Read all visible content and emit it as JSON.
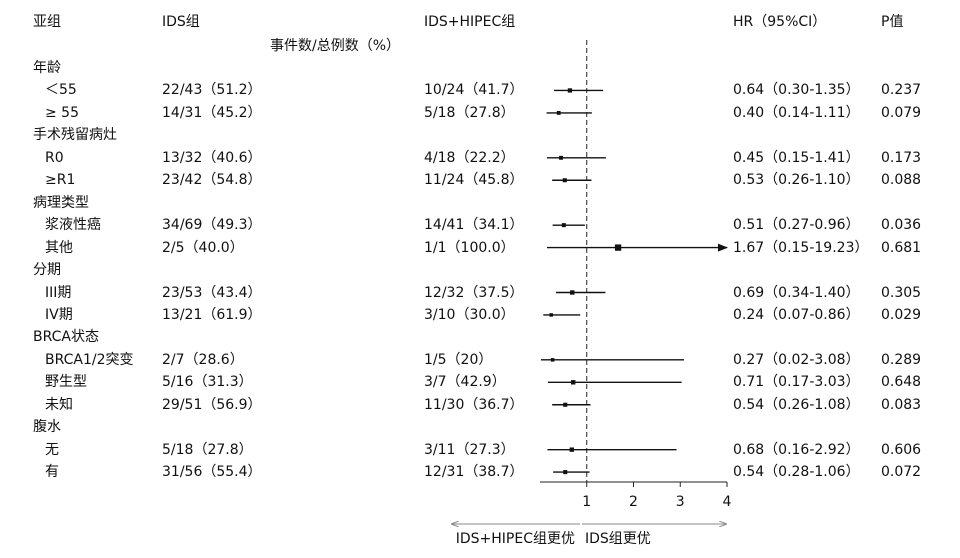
{
  "header": {
    "subgroup": "亚组",
    "ids": "IDS组",
    "ids_hipec": "IDS+HIPEC组",
    "events_note": "事件数/总例数（%）",
    "hr": "HR（95%CI）",
    "p": "P值"
  },
  "rows": [
    {
      "label": "年龄",
      "indent": false,
      "header": true
    },
    {
      "label": "＜55",
      "indent": true,
      "ids": "22/43（51.2）",
      "hipec": "10/24（41.7）",
      "hr_text": "0.64（0.30-1.35）",
      "p": "0.237"
    },
    {
      "label": "≥ 55",
      "indent": true,
      "ids": "14/31（45.2）",
      "hipec": "5/18（27.8）",
      "hr_text": "0.40（0.14-1.11）",
      "p": "0.079"
    },
    {
      "label": "手术残留病灶",
      "indent": false,
      "header": true
    },
    {
      "label": "R0",
      "indent": true,
      "ids": "13/32（40.6）",
      "hipec": "4/18（22.2）",
      "hr_text": "0.45（0.15-1.41）",
      "p": "0.173"
    },
    {
      "label": "≥R1",
      "indent": true,
      "ids": "23/42（54.8）",
      "hipec": "11/24（45.8）",
      "hr_text": "0.53（0.26-1.10）",
      "p": "0.088"
    },
    {
      "label": "病理类型",
      "indent": false,
      "header": true
    },
    {
      "label": "浆液性癌",
      "indent": true,
      "ids": "34/69（49.3）",
      "hipec": "14/41（34.1）",
      "hr_text": "0.51（0.27-0.96）",
      "p": "0.036"
    },
    {
      "label": "其他",
      "indent": true,
      "ids": "2/5（40.0）",
      "hipec": "1/1（100.0）",
      "hr_text": "1.67（0.15-19.23）",
      "p": "0.681"
    },
    {
      "label": "分期",
      "indent": false,
      "header": true
    },
    {
      "label": "III期",
      "indent": true,
      "ids": "23/53（43.4）",
      "hipec": "12/32（37.5）",
      "hr_text": "0.69（0.34-1.40）",
      "p": "0.305"
    },
    {
      "label": "IV期",
      "indent": true,
      "ids": "13/21（61.9）",
      "hipec": "3/10（30.0）",
      "hr_text": "0.24（0.07-0.86）",
      "p": "0.029"
    },
    {
      "label": "BRCA状态",
      "indent": false,
      "header": true
    },
    {
      "label": "BRCA1/2突变",
      "indent": true,
      "ids": "2/7（28.6）",
      "hipec": "1/5（20）",
      "hr_text": "0.27（0.02-3.08）",
      "p": "0.289"
    },
    {
      "label": "野生型",
      "indent": true,
      "ids": "5/16（31.3）",
      "hipec": "3/7（42.9）",
      "hr_text": "0.71（0.17-3.03）",
      "p": "0.648"
    },
    {
      "label": "未知",
      "indent": true,
      "ids": "29/51（56.9）",
      "hipec": "11/30（36.7）",
      "hr_text": "0.54（0.26-1.08）",
      "p": "0.083"
    },
    {
      "label": "腹水",
      "indent": false,
      "header": true
    },
    {
      "label": "无",
      "indent": true,
      "ids": "5/18（27.8）",
      "hipec": "3/11（27.3）",
      "hr_text": "0.68（0.16-2.92）",
      "p": "0.606"
    },
    {
      "label": "有",
      "indent": true,
      "ids": "31/56（55.4）",
      "hipec": "12/31（38.7）",
      "hr_text": "0.54（0.28-1.06）",
      "p": "0.072"
    }
  ],
  "chart_data": {
    "type": "forest",
    "x_ticks": [
      1,
      2,
      3,
      4
    ],
    "xlim": [
      0,
      4
    ],
    "reference_line": 1,
    "points": [
      {
        "hr": 0.64,
        "lo": 0.3,
        "hi": 1.35
      },
      {
        "hr": 0.4,
        "lo": 0.14,
        "hi": 1.11
      },
      {
        "hr": 0.45,
        "lo": 0.15,
        "hi": 1.41
      },
      {
        "hr": 0.53,
        "lo": 0.26,
        "hi": 1.1
      },
      {
        "hr": 0.51,
        "lo": 0.27,
        "hi": 0.96
      },
      {
        "hr": 1.67,
        "lo": 0.15,
        "hi": 19.23
      },
      {
        "hr": 0.69,
        "lo": 0.34,
        "hi": 1.4
      },
      {
        "hr": 0.24,
        "lo": 0.07,
        "hi": 0.86
      },
      {
        "hr": 0.27,
        "lo": 0.02,
        "hi": 3.08
      },
      {
        "hr": 0.71,
        "lo": 0.17,
        "hi": 3.03
      },
      {
        "hr": 0.54,
        "lo": 0.26,
        "hi": 1.08
      },
      {
        "hr": 0.68,
        "lo": 0.16,
        "hi": 2.92
      },
      {
        "hr": 0.54,
        "lo": 0.28,
        "hi": 1.06
      }
    ],
    "left_label": "IDS+HIPEC组更优",
    "right_label": "IDS组更优"
  }
}
